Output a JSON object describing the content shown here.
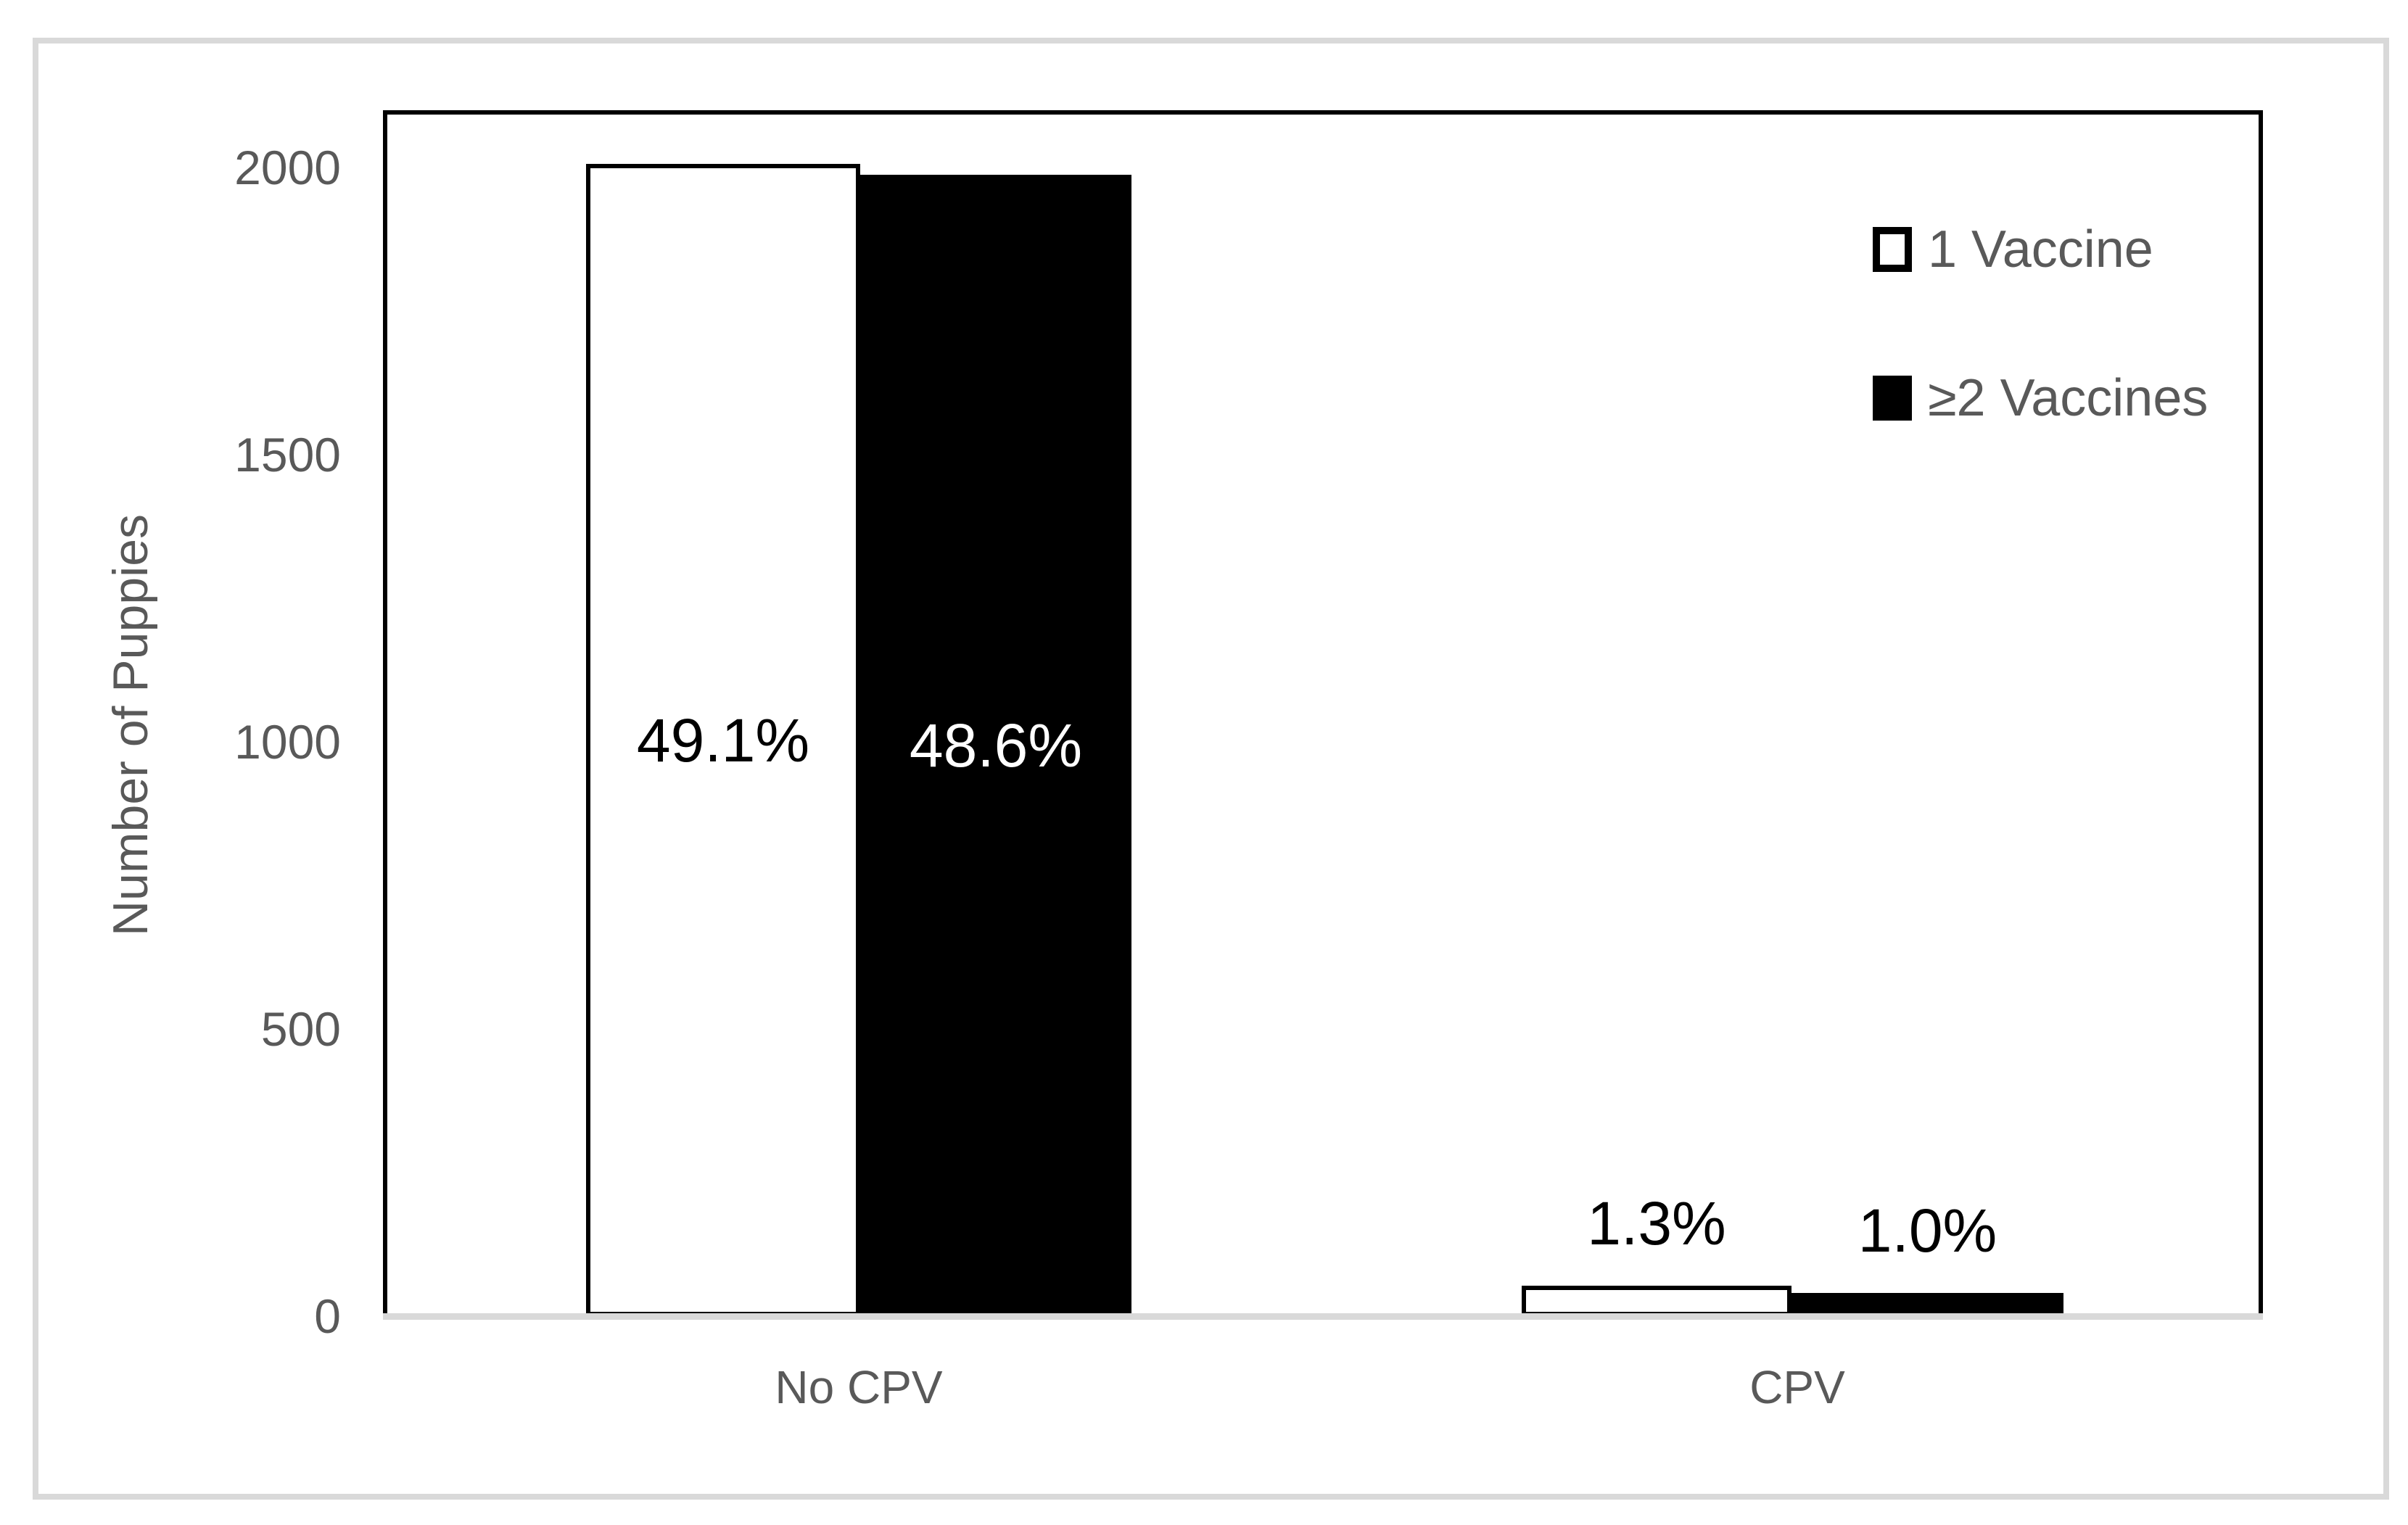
{
  "chart_data": {
    "type": "bar",
    "title": "",
    "categories": [
      "No CPV",
      "CPV"
    ],
    "series": [
      {
        "name": "1 Vaccine",
        "fill": "#ffffff",
        "values": [
          2007,
          53
        ],
        "labels": [
          "49.1%",
          "1.3%"
        ]
      },
      {
        "name": "≥2 Vaccines",
        "fill": "#000000",
        "values": [
          1987,
          41
        ],
        "labels": [
          "48.6%",
          "1.0%"
        ]
      }
    ],
    "xlabel": "",
    "ylabel": "Number of Puppies",
    "yticks": [
      {
        "label": "0",
        "value": 0
      },
      {
        "label": "500",
        "value": 500
      },
      {
        "label": "1000",
        "value": 1000
      },
      {
        "label": "1500",
        "value": 1500
      },
      {
        "label": "2000",
        "value": 2000
      }
    ],
    "ylim": [
      0,
      2100
    ],
    "grid": false,
    "legend_position": "top-right",
    "colors": {
      "bar_border": "#000000",
      "bar_fill_series1": "#ffffff",
      "bar_fill_series2": "#000000",
      "axis_baseline": "#d9d9d9",
      "figure_frame": "#d9d9d9",
      "gray_text": "#595959",
      "label_on_white": "#000000",
      "label_on_black": "#ffffff"
    }
  }
}
